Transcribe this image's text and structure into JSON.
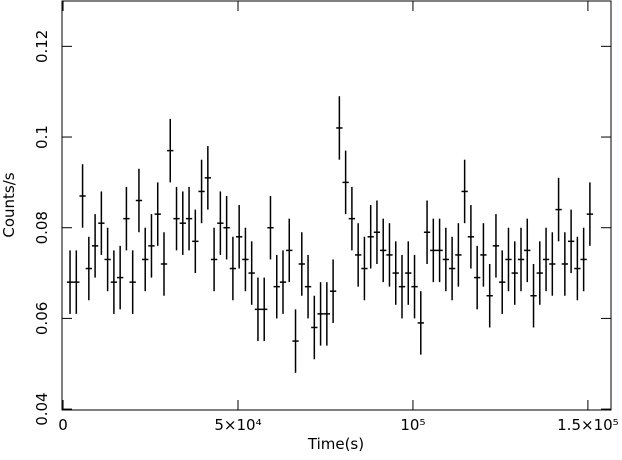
{
  "chart_data": {
    "type": "errorbar",
    "x_label": "Time(s)",
    "y_label": "Counts/s",
    "color": "#000000",
    "xlim": [
      -300,
      156600
    ],
    "ylim": [
      0.0398,
      0.13
    ],
    "xticks": [
      0,
      {
        "value": 50000,
        "label": "5×10⁴"
      },
      {
        "value": 100000,
        "label": "10⁵"
      },
      {
        "value": 150000,
        "label": "1.5×10⁵"
      }
    ],
    "yticks": [
      0.04,
      0.06,
      0.08,
      0.1,
      0.12
    ],
    "x_error": 900,
    "y_error": 0.007,
    "x": [
      2000,
      3790,
      5580,
      7370,
      9160,
      10950,
      12740,
      14530,
      16320,
      18110,
      19900,
      21690,
      23480,
      25270,
      27060,
      28850,
      30640,
      32430,
      34220,
      36010,
      37800,
      39590,
      41380,
      43170,
      44960,
      46750,
      48540,
      50330,
      52120,
      53910,
      55700,
      57490,
      59280,
      61070,
      62860,
      64650,
      66440,
      68230,
      70020,
      71810,
      73600,
      75390,
      77180,
      78970,
      80760,
      82550,
      84340,
      86130,
      87920,
      89710,
      91500,
      93290,
      95080,
      96870,
      98660,
      100450,
      102240,
      104030,
      105820,
      107610,
      109400,
      111190,
      112980,
      114770,
      116560,
      118350,
      120140,
      121930,
      123720,
      125510,
      127300,
      129090,
      130880,
      132670,
      134460,
      136250,
      138040,
      139830,
      141620,
      143410,
      145200,
      146990,
      148780,
      150570
    ],
    "values": [
      0.068,
      0.068,
      0.087,
      0.071,
      0.076,
      0.081,
      0.073,
      0.068,
      0.069,
      0.082,
      0.068,
      0.086,
      0.073,
      0.076,
      0.083,
      0.072,
      0.097,
      0.082,
      0.081,
      0.082,
      0.077,
      0.088,
      0.091,
      0.073,
      0.081,
      0.08,
      0.071,
      0.078,
      0.073,
      0.07,
      0.062,
      0.062,
      0.08,
      0.067,
      0.068,
      0.075,
      0.055,
      0.072,
      0.067,
      0.058,
      0.061,
      0.061,
      0.066,
      0.102,
      0.09,
      0.082,
      0.074,
      0.071,
      0.078,
      0.079,
      0.075,
      0.074,
      0.07,
      0.067,
      0.07,
      0.067,
      0.059,
      0.079,
      0.075,
      0.075,
      0.073,
      0.071,
      0.074,
      0.088,
      0.078,
      0.069,
      0.074,
      0.065,
      0.076,
      0.068,
      0.073,
      0.07,
      0.073,
      0.075,
      0.065,
      0.07,
      0.073,
      0.072,
      0.084,
      0.072,
      0.077,
      0.071,
      0.073,
      0.083
    ]
  }
}
